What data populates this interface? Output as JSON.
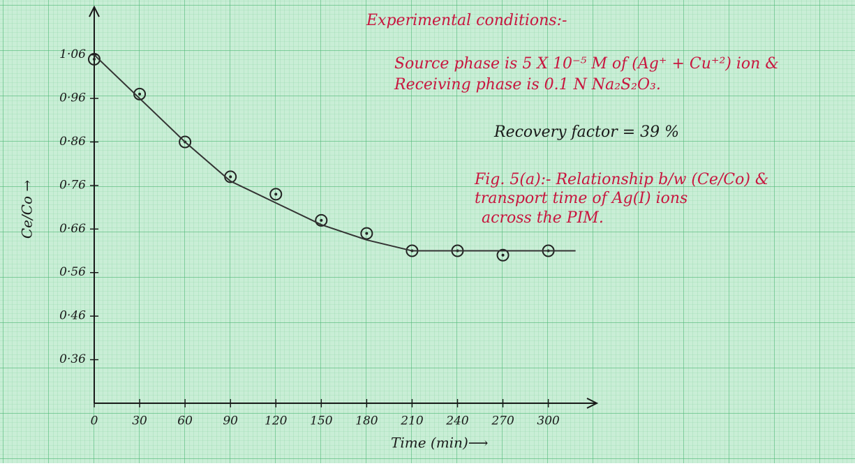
{
  "chart_data": {
    "type": "scatter",
    "x_label": "Time (min)⟶",
    "y_label": "Ce/Co →",
    "xlim": [
      0,
      332
    ],
    "ylim": [
      0.26,
      1.17
    ],
    "xticks": [
      0,
      30,
      60,
      90,
      120,
      150,
      180,
      210,
      240,
      270,
      300
    ],
    "yticks": [
      {
        "value": 1.06,
        "label": "1·06"
      },
      {
        "value": 0.96,
        "label": "0·96"
      },
      {
        "value": 0.86,
        "label": "0·86"
      },
      {
        "value": 0.76,
        "label": "0·76"
      },
      {
        "value": 0.66,
        "label": "0·66"
      },
      {
        "value": 0.56,
        "label": "0·56"
      },
      {
        "value": 0.46,
        "label": "0·46"
      },
      {
        "value": 0.36,
        "label": "0·36"
      }
    ],
    "grid": true,
    "series": [
      {
        "color": "#222222",
        "x": [
          0,
          30,
          60,
          90,
          120,
          150,
          180,
          210,
          240,
          270,
          300
        ],
        "values": [
          1.05,
          0.97,
          0.86,
          0.78,
          0.74,
          0.68,
          0.65,
          0.61,
          0.61,
          0.6,
          0.61
        ]
      },
      {
        "color": "#333333",
        "line": true,
        "x": [
          0,
          30,
          60,
          90,
          120,
          150,
          180,
          210,
          240,
          270,
          300,
          318
        ],
        "values": [
          1.06,
          0.96,
          0.86,
          0.77,
          0.72,
          0.67,
          0.635,
          0.61,
          0.61,
          0.61,
          0.61,
          0.61
        ]
      }
    ],
    "annotations": [
      "Experimental conditions:-",
      "Source phase is 5 X 10⁻⁵ M of (Ag⁺ + Cu⁺²) ion &",
      "Receiving phase is 0.1 N Na₂S₂O₃.",
      "Recovery factor = 39 %",
      "Fig. 5(a):- Relationship b/w (Ce/Co) &",
      "transport time of Ag(I) ions",
      "across the PIM."
    ],
    "annotation_colors": [
      "#c8163f",
      "#c8163f",
      "#c8163f",
      "#1a1a1a",
      "#c8163f",
      "#c8163f",
      "#c8163f"
    ]
  }
}
